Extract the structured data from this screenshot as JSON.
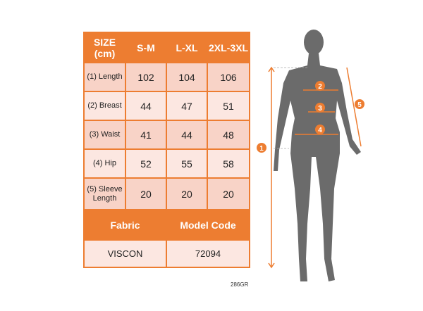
{
  "table": {
    "header": [
      "SIZE (cm)",
      "S-M",
      "L-XL",
      "2XL-3XL"
    ],
    "rows": [
      {
        "label": "(1) Length",
        "values": [
          "102",
          "104",
          "106"
        ]
      },
      {
        "label": "(2) Breast",
        "values": [
          "44",
          "47",
          "51"
        ]
      },
      {
        "label": "(3) Waist",
        "values": [
          "41",
          "44",
          "48"
        ]
      },
      {
        "label": "(4) Hip",
        "values": [
          "52",
          "55",
          "58"
        ]
      },
      {
        "label": "(5) Sleeve Length",
        "values": [
          "20",
          "20",
          "20"
        ]
      }
    ],
    "footer_header": [
      "Fabric",
      "Model Code"
    ],
    "footer_values": [
      "VISCON",
      "72094"
    ]
  },
  "figure": {
    "markers": [
      "1",
      "2",
      "3",
      "4",
      "5"
    ]
  },
  "code": "286GR",
  "colors": {
    "accent": "#ed7d31",
    "row_dark": "#f8d3c7",
    "row_light": "#fce7e1",
    "silhouette": "#6b6b6b"
  }
}
